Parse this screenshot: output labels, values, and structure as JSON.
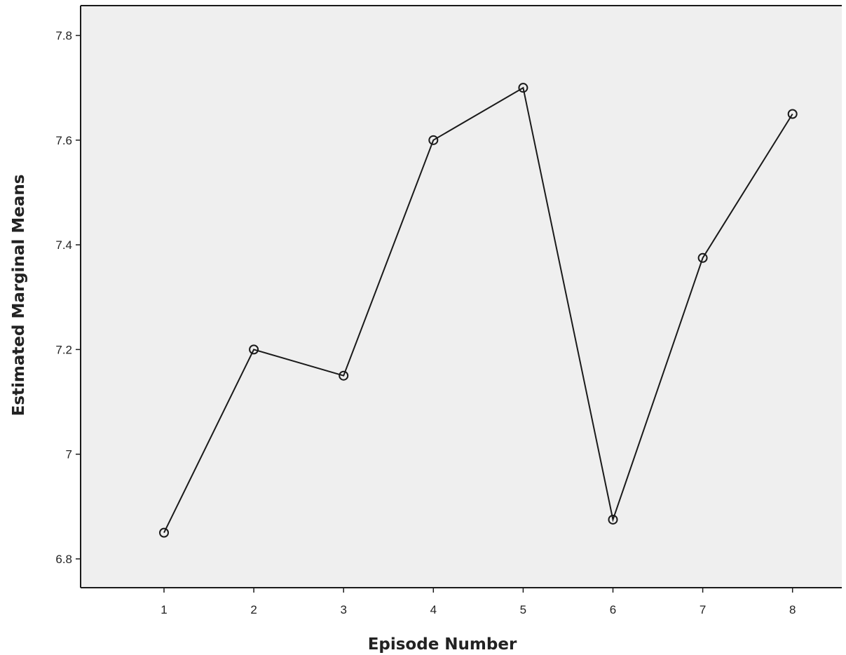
{
  "chart_data": {
    "type": "line",
    "title": "",
    "xlabel": "Episode Number",
    "ylabel": "Estimated Marginal Means",
    "x": [
      1,
      2,
      3,
      4,
      5,
      6,
      7,
      8
    ],
    "x_tick_labels": [
      "1",
      "2",
      "3",
      "4",
      "5",
      "6",
      "7",
      "8"
    ],
    "series": [
      {
        "values": [
          6.85,
          7.2,
          7.15,
          7.6,
          7.7,
          6.875,
          7.375,
          7.65
        ]
      }
    ],
    "y_ticks": [
      6.8,
      7,
      7.2,
      7.4,
      7.6,
      7.8
    ],
    "y_tick_labels": [
      "6.8",
      "7",
      "7.2",
      "7.4",
      "7.6",
      "7.8"
    ],
    "ylim": [
      6.745,
      7.857
    ],
    "marker": "open-circle",
    "grid": false,
    "colors": {
      "plot_background": "#efefef",
      "line": "#1a1a1a",
      "marker": "#1a1a1a"
    }
  }
}
